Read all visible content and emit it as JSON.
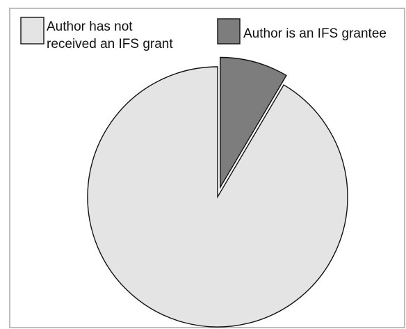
{
  "chart_data": {
    "type": "pie",
    "slices": [
      {
        "label": "Author has not received an IFS grant",
        "value": 91.5,
        "color": "#e4e4e4"
      },
      {
        "label": "Author is an IFS grantee",
        "value": 8.5,
        "color": "#7d7d7d",
        "exploded": true
      }
    ],
    "legend": {
      "placement": "top",
      "items": [
        {
          "lines": [
            "Author has not",
            "received an IFS grant"
          ],
          "color": "#e4e4e4"
        },
        {
          "lines": [
            "Author is an IFS grantee"
          ],
          "color": "#7d7d7d"
        }
      ]
    },
    "title": "",
    "border_color": "#bdbdbd",
    "edge_color": "#111111"
  }
}
